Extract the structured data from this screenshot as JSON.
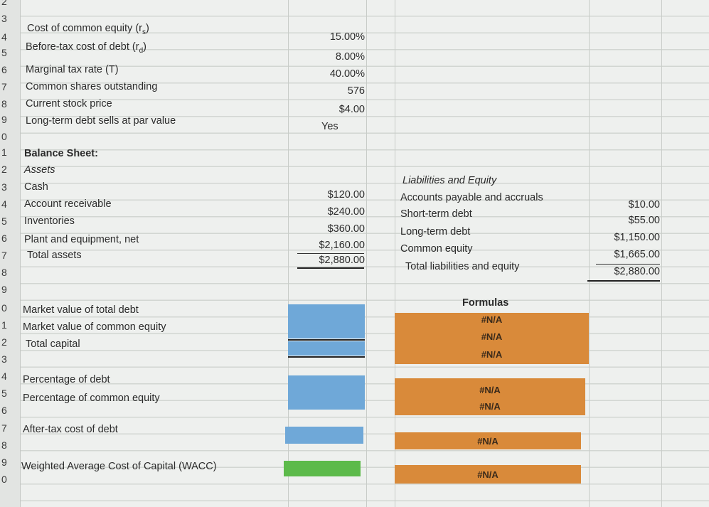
{
  "row_numbers": [
    "2",
    "3",
    "4",
    "5",
    "6",
    "7",
    "8",
    "9",
    "0",
    "1",
    "2",
    "3",
    "4",
    "5",
    "6",
    "7",
    "8",
    "9",
    "0",
    "1",
    "2",
    "3",
    "4",
    "5",
    "6",
    "7",
    "8",
    "9",
    "0"
  ],
  "inputs": {
    "labels": {
      "cost_equity": "Cost of common equity (r",
      "cost_equity_sub": "s",
      "pretax_debt": "Before-tax cost of debt (r",
      "pretax_debt_sub": "d",
      "tax_rate": "Marginal tax rate (T)",
      "shares": "Common shares outstanding",
      "price": "Current stock price",
      "par": "Long-term debt sells at par value"
    },
    "values": {
      "cost_equity": "15.00%",
      "pretax_debt": "8.00%",
      "tax_rate": "40.00%",
      "shares": "576",
      "price": "$4.00",
      "par": "Yes"
    }
  },
  "balance_sheet": {
    "title": "Balance Sheet:",
    "assets_header": "Assets",
    "assets": [
      {
        "label": "Cash",
        "value": "$120.00"
      },
      {
        "label": "Account receivable",
        "value": "$240.00"
      },
      {
        "label": "Inventories",
        "value": "$360.00"
      },
      {
        "label": "Plant and equipment, net",
        "value": "$2,160.00"
      },
      {
        "label": "Total assets",
        "value": "$2,880.00"
      }
    ],
    "liab_header": "Liabilities and Equity",
    "liabilities": [
      {
        "label": "Accounts payable and accruals",
        "value": "$10.00"
      },
      {
        "label": "Short-term debt",
        "value": "$55.00"
      },
      {
        "label": "Long-term debt",
        "value": "$1,150.00"
      },
      {
        "label": "Common equity",
        "value": "$1,665.00"
      },
      {
        "label": "Total liabilities and equity",
        "value": "$2,880.00"
      }
    ]
  },
  "calculations": {
    "formulas_header": "Formulas",
    "na": "#N/A",
    "mv_debt": "Market value of total debt",
    "mv_equity": "Market value of common equity",
    "total_capital": "Total capital",
    "pct_debt": "Percentage of debt",
    "pct_equity": "Percentage of common equity",
    "aftertax_debt": "After-tax cost of debt",
    "wacc": "Weighted Average Cost of Capital (WACC)"
  },
  "colors": {
    "blue": "#6fa8d8",
    "orange": "#d98a3a",
    "green": "#5cba4a"
  }
}
